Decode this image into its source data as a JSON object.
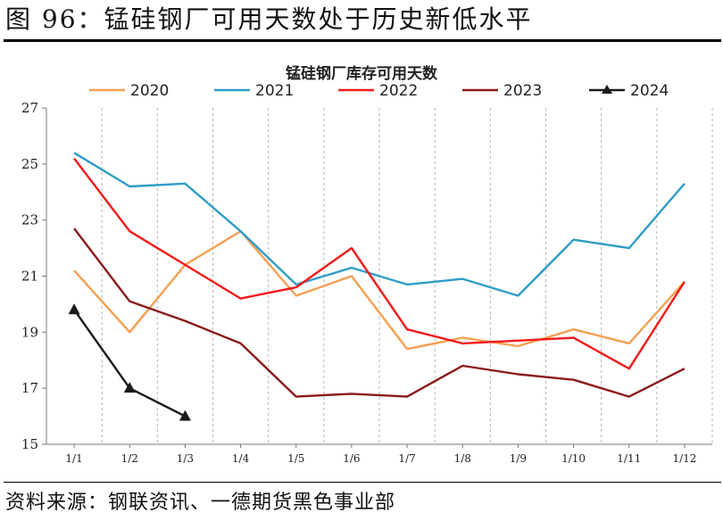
{
  "figure_title": "图 96：锰硅钢厂可用天数处于历史新低水平",
  "source_note": "资料来源：钢联资讯、一德期货黑色事业部",
  "chart_data": {
    "type": "line",
    "title": "锰硅钢厂库存可用天数",
    "xlabel": "",
    "ylabel": "",
    "categories": [
      "1/1",
      "1/2",
      "1/3",
      "1/4",
      "1/5",
      "1/6",
      "1/7",
      "1/8",
      "1/9",
      "1/10",
      "1/11",
      "1/12"
    ],
    "ylim": [
      15,
      27
    ],
    "yticks": [
      15,
      17,
      19,
      21,
      23,
      25,
      27
    ],
    "grid": "vertical-dashed",
    "legend": "top",
    "series": [
      {
        "name": "2020",
        "color": "#F4A052",
        "marker": "none",
        "values": [
          21.2,
          19.0,
          21.4,
          22.6,
          20.3,
          21.0,
          18.4,
          18.8,
          18.5,
          19.1,
          18.6,
          20.8
        ]
      },
      {
        "name": "2021",
        "color": "#2E9DC6",
        "marker": "none",
        "values": [
          25.4,
          24.2,
          24.3,
          22.6,
          20.7,
          21.3,
          20.7,
          20.9,
          20.3,
          22.3,
          22.0,
          24.3
        ]
      },
      {
        "name": "2022",
        "color": "#F21A1A",
        "marker": "none",
        "values": [
          25.2,
          22.6,
          21.4,
          20.2,
          20.6,
          22.0,
          19.1,
          18.6,
          18.7,
          18.8,
          17.7,
          20.8
        ]
      },
      {
        "name": "2023",
        "color": "#8B1A1A",
        "marker": "none",
        "values": [
          22.7,
          20.1,
          19.4,
          18.6,
          16.7,
          16.8,
          16.7,
          17.8,
          17.5,
          17.3,
          16.7,
          17.7
        ]
      },
      {
        "name": "2024",
        "color": "#1A1A1A",
        "marker": "triangle",
        "values": [
          19.8,
          17.0,
          16.0,
          null,
          null,
          null,
          null,
          null,
          null,
          null,
          null,
          null
        ]
      }
    ]
  }
}
